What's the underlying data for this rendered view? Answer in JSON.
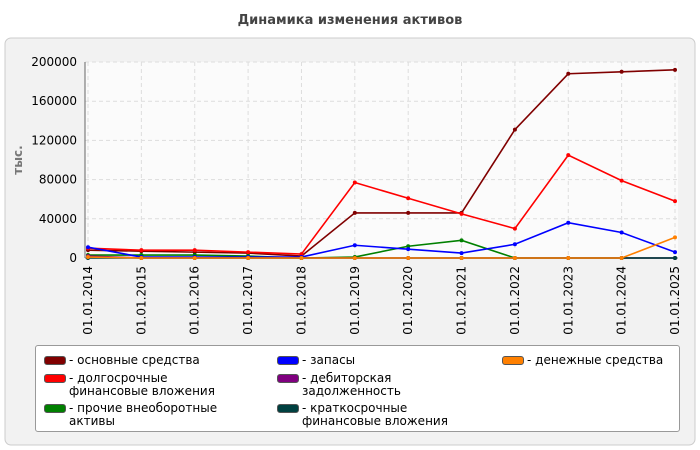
{
  "chart_data": {
    "type": "line",
    "title": "Динамика изменения активов",
    "y_label": "тыс.",
    "categories": [
      "01.01.2014",
      "01.01.2015",
      "01.01.2016",
      "01.01.2017",
      "01.01.2018",
      "01.01.2019",
      "01.01.2020",
      "01.01.2021",
      "01.01.2022",
      "01.01.2023",
      "01.01.2024",
      "01.01.2025"
    ],
    "series": [
      {
        "name": "- основные средства",
        "color": "#800000",
        "values": [
          8000,
          7000,
          6000,
          5000,
          2000,
          46000,
          46000,
          46000,
          131000,
          188000,
          190000,
          192000
        ]
      },
      {
        "name": "- долгосрочные финансовые вложения",
        "color": "#ff0000",
        "values": [
          10000,
          8000,
          8000,
          6000,
          4000,
          77000,
          61000,
          45000,
          30000,
          105000,
          79000,
          58000
        ]
      },
      {
        "name": "- прочие внеоборотные активы",
        "color": "#008000",
        "values": [
          3000,
          3000,
          3000,
          2000,
          0,
          1000,
          12000,
          18000,
          0,
          0,
          0,
          0
        ]
      },
      {
        "name": "- запасы",
        "color": "#0000ff",
        "values": [
          11000,
          1000,
          1000,
          1000,
          1000,
          13000,
          9000,
          5000,
          14000,
          36000,
          26000,
          6000
        ]
      },
      {
        "name": "- дебиторская задолженность",
        "color": "#800080",
        "values": [
          2000,
          0,
          0,
          0,
          0,
          0,
          0,
          0,
          0,
          0,
          0,
          0
        ]
      },
      {
        "name": "- краткосрочные финансовые вложения",
        "color": "#004040",
        "values": [
          0,
          0,
          0,
          0,
          0,
          0,
          0,
          0,
          0,
          0,
          0,
          0
        ]
      },
      {
        "name": "- денежные средства",
        "color": "#ff8000",
        "values": [
          1000,
          0,
          0,
          0,
          0,
          0,
          0,
          0,
          0,
          0,
          0,
          21000
        ]
      }
    ],
    "ylim": [
      0,
      200000
    ],
    "yticks": [
      0,
      40000,
      80000,
      120000,
      160000,
      200000
    ],
    "grid": true
  }
}
